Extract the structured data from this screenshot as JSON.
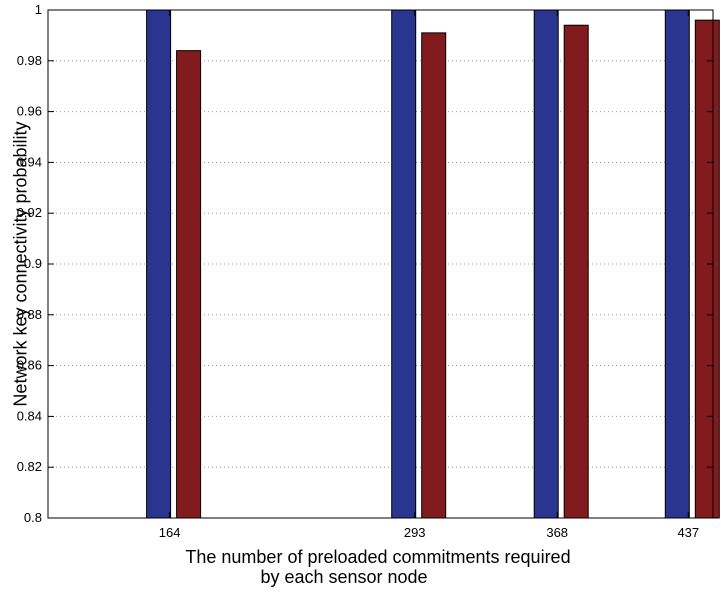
{
  "chart_data": {
    "type": "bar",
    "title": "",
    "xlabel_line1": "The number of preloaded commitments required",
    "xlabel_line2": "by each sensor node",
    "ylabel": "Network key connectivity probability",
    "x_ticks": [
      164,
      293,
      368,
      437
    ],
    "xlim": [
      100,
      450
    ],
    "ylim": [
      0.8,
      1.0
    ],
    "y_ticks": [
      "0.8",
      "0.82",
      "0.84",
      "0.86",
      "0.88",
      "0.9",
      "0.92",
      "0.94",
      "0.96",
      "0.98",
      "1"
    ],
    "grid": true,
    "series": [
      {
        "color": "#2a3590",
        "values": [
          1.0,
          1.0,
          1.0,
          1.0
        ]
      },
      {
        "color": "#821b1e",
        "values": [
          0.984,
          0.991,
          0.994,
          0.996
        ]
      }
    ]
  }
}
